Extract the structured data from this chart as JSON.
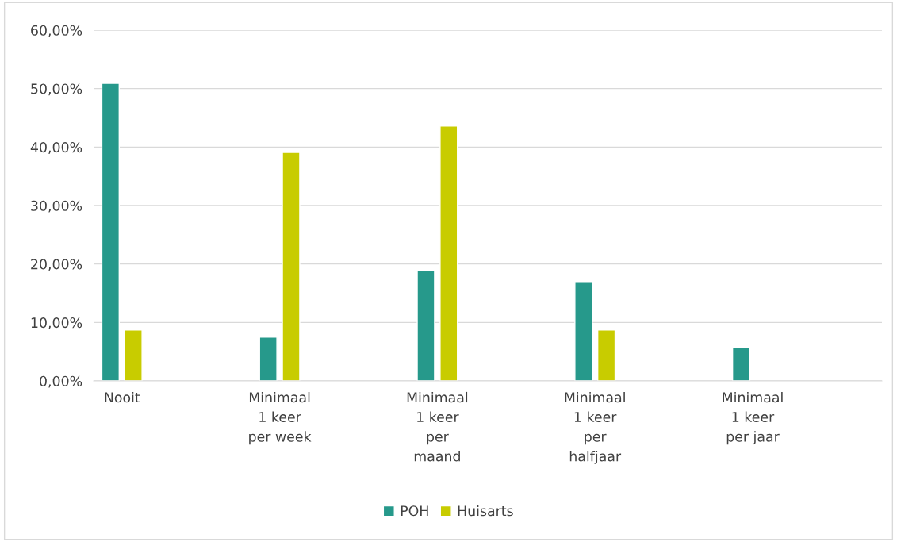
{
  "chart_data": {
    "type": "bar",
    "categories": [
      "Nooit",
      "Minimaal\n1 keer\nper week",
      "Minimaal\n1 keer\nper\nmaand",
      "Minimaal\n1 keer\nper\nhalfjaar",
      "Minimaal\n1 keer\nper jaar"
    ],
    "series": [
      {
        "name": "POH",
        "color": "#26998b",
        "values": [
          50.9,
          7.5,
          18.9,
          17.0,
          5.8
        ]
      },
      {
        "name": "Huisarts",
        "color": "#c8cc00",
        "values": [
          8.7,
          39.1,
          43.6,
          8.7,
          null
        ]
      }
    ],
    "ylim": [
      0,
      60
    ],
    "yticks": [
      {
        "value": 0,
        "label": "0,00%"
      },
      {
        "value": 10,
        "label": "10,00%"
      },
      {
        "value": 20,
        "label": "20,00%"
      },
      {
        "value": 30,
        "label": "30,00%"
      },
      {
        "value": 40,
        "label": "40,00%"
      },
      {
        "value": 50,
        "label": "50,00%"
      },
      {
        "value": 60,
        "label": "60,00%"
      }
    ],
    "grid": "y",
    "legend": "bottom"
  }
}
